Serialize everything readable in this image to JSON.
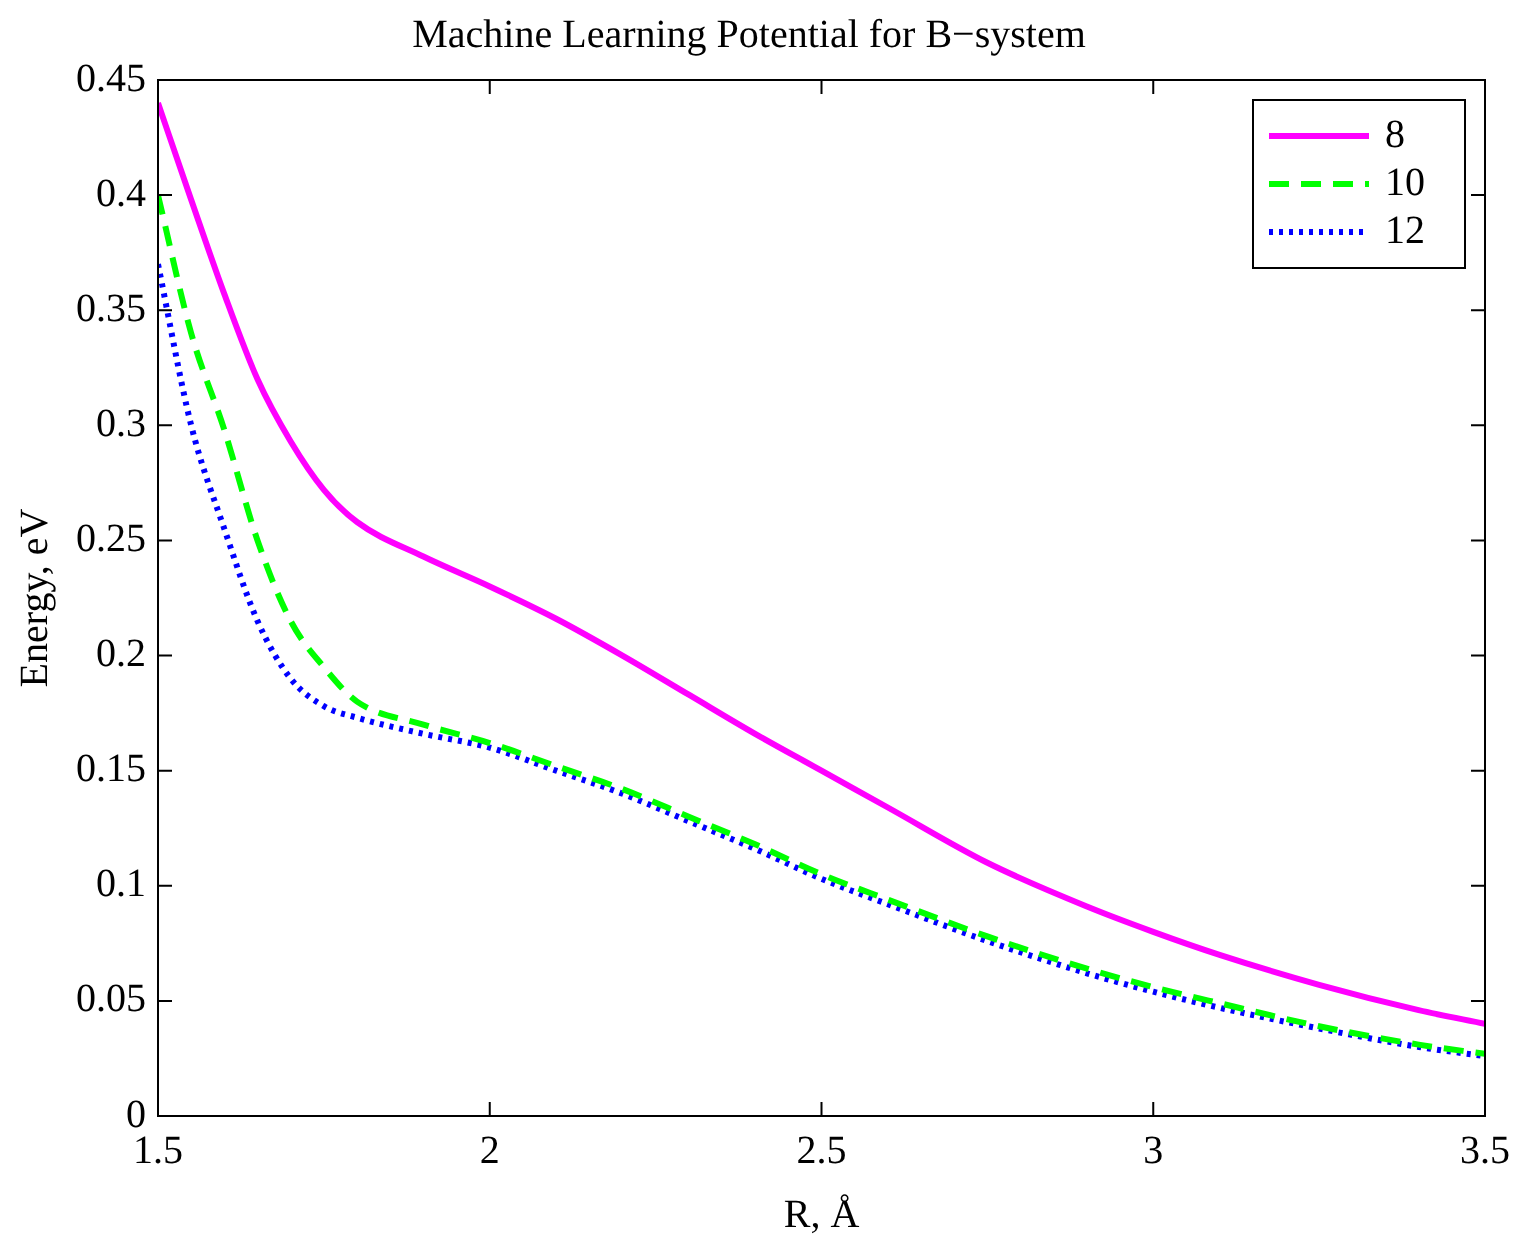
{
  "chart_data": {
    "type": "line",
    "title": "Machine Learning Potential for B−system",
    "xlabel": "R, Å",
    "ylabel": "Energy, eV",
    "xlim": [
      1.5,
      3.5
    ],
    "xticks": [
      1.5,
      2,
      2.5,
      3,
      3.5
    ],
    "ylim": [
      0,
      0.45
    ],
    "yticks": [
      0,
      0.05,
      0.1,
      0.15,
      0.2,
      0.25,
      0.3,
      0.35,
      0.4,
      0.45
    ],
    "legend": "top right",
    "marker": "none",
    "x": [
      1.5,
      1.55,
      1.6,
      1.65,
      1.7,
      1.75,
      1.8,
      1.9,
      2,
      2.1,
      2.2,
      2.3,
      2.4,
      2.5,
      2.6,
      2.75,
      2.9,
      3,
      3.1,
      3.25,
      3.4,
      3.5
    ],
    "series": [
      {
        "name": "8",
        "color": "#ff00ff",
        "line_style": "solid",
        "values": [
          0.44,
          0.398,
          0.357,
          0.32,
          0.293,
          0.272,
          0.258,
          0.243,
          0.23,
          0.216,
          0.2,
          0.183,
          0.166,
          0.15,
          0.134,
          0.11,
          0.091,
          0.08,
          0.07,
          0.057,
          0.046,
          0.04
        ]
      },
      {
        "name": "10",
        "color": "#00ff00",
        "line_style": "dashed",
        "values": [
          0.4,
          0.34,
          0.298,
          0.25,
          0.215,
          0.195,
          0.18,
          0.17,
          0.162,
          0.152,
          0.142,
          0.13,
          0.118,
          0.105,
          0.094,
          0.078,
          0.064,
          0.056,
          0.049,
          0.039,
          0.031,
          0.027
        ]
      },
      {
        "name": "12",
        "color": "#0000ff",
        "line_style": "dotted",
        "values": [
          0.37,
          0.3,
          0.255,
          0.215,
          0.19,
          0.178,
          0.173,
          0.166,
          0.16,
          0.15,
          0.14,
          0.128,
          0.116,
          0.103,
          0.092,
          0.076,
          0.062,
          0.054,
          0.047,
          0.038,
          0.03,
          0.026
        ]
      }
    ]
  }
}
